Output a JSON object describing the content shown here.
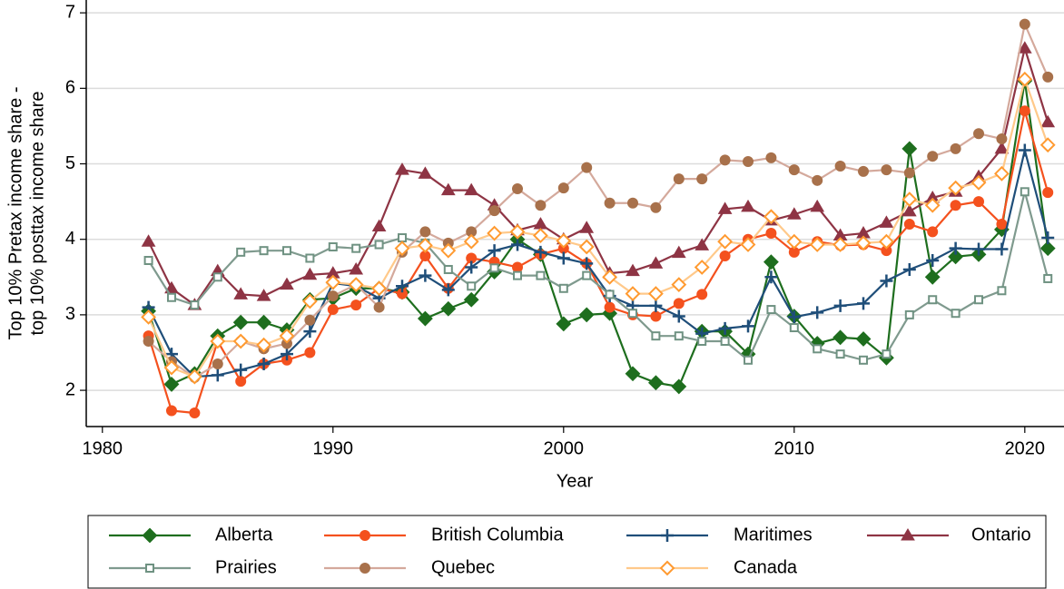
{
  "chart_data": {
    "type": "line",
    "xlabel": "Year",
    "ylabel": [
      "Top 10% Pretax income share -",
      "top 10% posttax income share"
    ],
    "x": [
      1982,
      1983,
      1984,
      1985,
      1986,
      1987,
      1988,
      1989,
      1990,
      1991,
      1992,
      1993,
      1994,
      1995,
      1996,
      1997,
      1998,
      1999,
      2000,
      2001,
      2002,
      2003,
      2004,
      2005,
      2006,
      2007,
      2008,
      2009,
      2010,
      2011,
      2012,
      2013,
      2014,
      2015,
      2016,
      2017,
      2018,
      2019,
      2020,
      2021
    ],
    "xlim": [
      1979.3,
      2021.7
    ],
    "xticks": [
      1980,
      1990,
      2000,
      2010,
      2020
    ],
    "ylim": [
      1.52,
      7.17
    ],
    "yticks": [
      2,
      3,
      4,
      5,
      6,
      7
    ],
    "grid": true,
    "series": [
      {
        "name": "Alberta",
        "color": "#1e6e1e",
        "line_color": "#1e6e1e",
        "marker": "diamond",
        "marker_fill": true,
        "values": [
          3.05,
          2.08,
          2.22,
          2.72,
          2.9,
          2.9,
          2.8,
          3.2,
          3.22,
          3.35,
          3.35,
          3.3,
          2.95,
          3.08,
          3.2,
          3.57,
          4.0,
          3.8,
          2.88,
          3.0,
          3.02,
          2.22,
          2.1,
          2.05,
          2.78,
          2.78,
          2.48,
          3.7,
          2.98,
          2.62,
          2.7,
          2.68,
          2.43,
          5.2,
          3.5,
          3.77,
          3.8,
          4.13,
          6.1,
          3.88
        ]
      },
      {
        "name": "British Columbia",
        "color": "#f4511e",
        "line_color": "#f4511e",
        "marker": "circle",
        "marker_fill": true,
        "values": [
          2.72,
          1.73,
          1.7,
          2.65,
          2.12,
          2.35,
          2.4,
          2.5,
          3.07,
          3.13,
          3.35,
          3.28,
          3.78,
          3.35,
          3.75,
          3.7,
          3.63,
          3.8,
          3.88,
          3.68,
          3.1,
          3.0,
          2.98,
          3.15,
          3.27,
          3.78,
          4.0,
          4.08,
          3.83,
          3.97,
          3.92,
          3.93,
          3.85,
          4.2,
          4.1,
          4.45,
          4.5,
          4.2,
          5.7,
          4.62
        ]
      },
      {
        "name": "Maritimes",
        "color": "#1f4e79",
        "line_color": "#1f4e79",
        "marker": "plus",
        "marker_fill": true,
        "values": [
          3.1,
          2.48,
          2.18,
          2.2,
          2.27,
          2.35,
          2.48,
          2.78,
          3.42,
          3.38,
          3.22,
          3.38,
          3.52,
          3.33,
          3.63,
          3.85,
          3.93,
          3.83,
          3.75,
          3.68,
          3.25,
          3.12,
          3.12,
          2.98,
          2.75,
          2.82,
          2.85,
          3.5,
          2.97,
          3.03,
          3.12,
          3.15,
          3.45,
          3.6,
          3.72,
          3.88,
          3.87,
          3.87,
          5.18,
          4.02
        ]
      },
      {
        "name": "Ontario",
        "color": "#8e3444",
        "line_color": "#8e3444",
        "marker": "triangle",
        "marker_fill": true,
        "values": [
          3.97,
          3.35,
          3.13,
          3.58,
          3.27,
          3.25,
          3.4,
          3.53,
          3.55,
          3.6,
          4.17,
          4.92,
          4.87,
          4.65,
          4.65,
          4.45,
          4.12,
          4.2,
          4.0,
          4.15,
          3.55,
          3.58,
          3.68,
          3.82,
          3.92,
          4.4,
          4.43,
          4.25,
          4.33,
          4.43,
          4.05,
          4.08,
          4.22,
          4.37,
          4.55,
          4.63,
          4.83,
          5.2,
          6.53,
          5.55
        ]
      },
      {
        "name": "Prairies",
        "color": "#6f9282",
        "line_color": "#7f9a8e",
        "marker": "square",
        "marker_fill": false,
        "values": [
          3.72,
          3.23,
          3.13,
          3.5,
          3.83,
          3.85,
          3.85,
          3.75,
          3.9,
          3.88,
          3.93,
          4.02,
          3.95,
          3.6,
          3.38,
          3.62,
          3.52,
          3.52,
          3.35,
          3.52,
          3.27,
          3.02,
          2.72,
          2.72,
          2.65,
          2.65,
          2.4,
          3.07,
          2.83,
          2.55,
          2.48,
          2.4,
          2.48,
          3.0,
          3.2,
          3.02,
          3.2,
          3.32,
          4.63,
          3.48
        ]
      },
      {
        "name": "Quebec",
        "color": "#a8714b",
        "line_color": "#d4a99c",
        "marker": "circle",
        "marker_fill": true,
        "values": [
          2.65,
          2.38,
          2.17,
          2.35,
          2.65,
          2.55,
          2.62,
          2.93,
          3.25,
          3.4,
          3.1,
          3.83,
          4.1,
          3.95,
          4.1,
          4.38,
          4.67,
          4.45,
          4.68,
          4.95,
          4.48,
          4.48,
          4.42,
          4.8,
          4.8,
          5.05,
          5.03,
          5.08,
          4.92,
          4.78,
          4.97,
          4.9,
          4.92,
          4.88,
          5.1,
          5.2,
          5.4,
          5.33,
          6.85,
          6.15
        ]
      },
      {
        "name": "Canada",
        "color": "#ff9a30",
        "line_color": "#ffc98a",
        "marker": "diamond",
        "marker_fill": false,
        "values": [
          2.97,
          2.3,
          2.18,
          2.65,
          2.65,
          2.6,
          2.72,
          3.18,
          3.43,
          3.4,
          3.35,
          3.88,
          3.92,
          3.85,
          3.97,
          4.08,
          4.1,
          4.05,
          3.98,
          3.9,
          3.5,
          3.28,
          3.28,
          3.4,
          3.63,
          3.97,
          3.93,
          4.3,
          3.97,
          3.93,
          3.93,
          3.95,
          3.97,
          4.53,
          4.45,
          4.68,
          4.75,
          4.87,
          6.12,
          5.25
        ]
      }
    ]
  }
}
